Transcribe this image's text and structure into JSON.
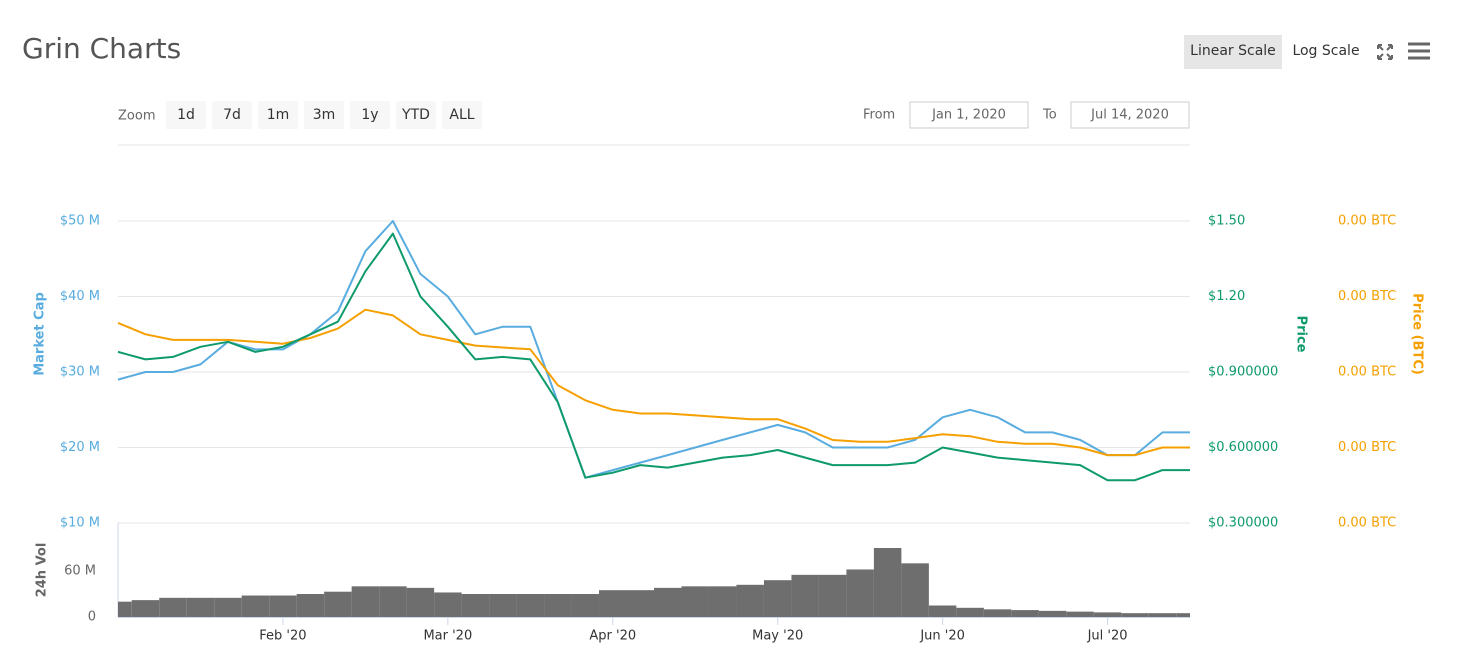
{
  "header": {
    "title": "Grin Charts",
    "scale_buttons": [
      "Linear Scale",
      "Log Scale"
    ]
  },
  "zoom": {
    "label": "Zoom",
    "buttons": [
      "1d",
      "7d",
      "1m",
      "3m",
      "1y",
      "YTD",
      "ALL"
    ]
  },
  "range": {
    "from_label": "From",
    "from": "Jan 1, 2020",
    "to_label": "To",
    "to": "Jul 14, 2020"
  },
  "chart_data": {
    "type": "line",
    "categories": [
      null,
      null,
      null,
      null,
      null,
      null,
      "Feb '20",
      null,
      null,
      null,
      null,
      null,
      "Mar '20",
      null,
      null,
      null,
      null,
      null,
      "Apr '20",
      null,
      null,
      null,
      null,
      null,
      "May '20",
      null,
      null,
      null,
      null,
      null,
      "Jun '20",
      null,
      null,
      null,
      null,
      null,
      "Jul '20",
      null,
      null,
      null
    ],
    "ylim": [
      10,
      50
    ],
    "yticks": [
      {
        "value": 10,
        "label": "$10 M"
      },
      {
        "value": 20,
        "label": "$20 M"
      },
      {
        "value": 30,
        "label": "$30 M"
      },
      {
        "value": 40,
        "label": "$40 M"
      },
      {
        "value": 50,
        "label": "$50 M"
      }
    ],
    "y2lim": [
      0.3,
      1.5
    ],
    "y2ticks": [
      {
        "value": 0.3,
        "label": "$0.300000"
      },
      {
        "value": 0.6,
        "label": "$0.600000"
      },
      {
        "value": 0.9,
        "label": "$0.900000"
      },
      {
        "value": 1.2,
        "label": "$1.20"
      },
      {
        "value": 1.5,
        "label": "$1.50"
      }
    ],
    "y3lim": [
      4e-05,
      0.0002
    ],
    "y3ticks": [
      {
        "value": 4e-05,
        "label": "0.00 BTC"
      },
      {
        "value": 8e-05,
        "label": "0.00 BTC"
      },
      {
        "value": 0.00012,
        "label": "0.00 BTC"
      },
      {
        "value": 0.00016,
        "label": "0.00 BTC"
      },
      {
        "value": 0.0002,
        "label": "0.00 BTC"
      }
    ],
    "y4lim": [
      0,
      120
    ],
    "y4ticks": [
      {
        "value": 0,
        "label": "0"
      },
      {
        "value": 60,
        "label": "60 M"
      }
    ],
    "grid": true,
    "series": [
      {
        "name": "Market Cap",
        "color": "#58acdf",
        "axis": "y",
        "type": "line",
        "values": [
          29,
          30,
          30,
          31,
          34,
          33,
          33,
          35,
          38,
          46,
          50,
          43,
          40,
          35,
          36,
          36,
          26,
          16,
          17,
          18,
          19,
          20,
          21,
          22,
          23,
          22,
          20,
          20,
          20,
          21,
          24,
          25,
          24,
          22,
          22,
          21,
          19,
          19,
          22,
          22
        ]
      },
      {
        "name": "Price",
        "color": "#0e9a6b",
        "axis": "y2",
        "type": "line",
        "values": [
          0.98,
          0.95,
          0.96,
          1.0,
          1.02,
          0.98,
          1.0,
          1.05,
          1.1,
          1.3,
          1.45,
          1.2,
          1.08,
          0.95,
          0.96,
          0.95,
          0.78,
          0.48,
          0.5,
          0.53,
          0.52,
          0.54,
          0.56,
          0.57,
          0.59,
          0.56,
          0.53,
          0.53,
          0.53,
          0.54,
          0.6,
          0.58,
          0.56,
          0.55,
          0.54,
          0.53,
          0.47,
          0.47,
          0.51,
          0.51
        ]
      },
      {
        "name": "Price (BTC)",
        "color": "#f5a000",
        "axis": "y3",
        "type": "line",
        "values": [
          0.000146,
          0.00014,
          0.000137,
          0.000137,
          0.000137,
          0.000136,
          0.000135,
          0.000138,
          0.000143,
          0.000153,
          0.00015,
          0.00014,
          0.000137,
          0.000134,
          0.000133,
          0.000132,
          0.000113,
          0.000105,
          0.0001,
          9.8e-05,
          9.8e-05,
          9.7e-05,
          9.6e-05,
          9.5e-05,
          9.5e-05,
          9e-05,
          8.4e-05,
          8.3e-05,
          8.3e-05,
          8.5e-05,
          8.7e-05,
          8.6e-05,
          8.3e-05,
          8.2e-05,
          8.2e-05,
          8e-05,
          7.6e-05,
          7.6e-05,
          8e-05,
          8e-05
        ]
      },
      {
        "name": "24h Vol",
        "color": "#6e6e6e",
        "axis": "y4",
        "type": "bar",
        "values": [
          20,
          22,
          25,
          25,
          25,
          28,
          28,
          30,
          33,
          40,
          40,
          38,
          32,
          30,
          30,
          30,
          30,
          30,
          35,
          35,
          38,
          40,
          40,
          42,
          48,
          55,
          55,
          62,
          90,
          70,
          15,
          12,
          10,
          9,
          8,
          7,
          6,
          5,
          5,
          5
        ]
      }
    ]
  }
}
